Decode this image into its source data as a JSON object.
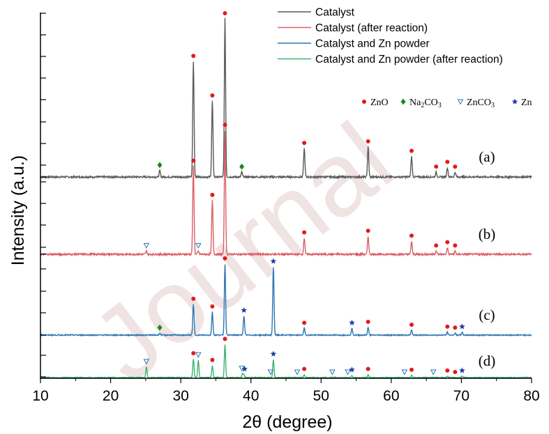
{
  "watermark": "Journal",
  "chart_data": {
    "type": "line",
    "xlabel": "2θ (degree)",
    "ylabel": "Intensity (a.u.)",
    "xlim": [
      10,
      80
    ],
    "xticks": [
      10,
      20,
      30,
      40,
      50,
      60,
      70,
      80
    ],
    "xtick_labels": [
      "10",
      "20",
      "30",
      "40",
      "50",
      "60",
      "70",
      "80"
    ],
    "legend": {
      "position": "top-right"
    },
    "colors": {
      "a": "#5a5a5a",
      "b": "#dc5e66",
      "c": "#2e75b6",
      "d": "#3cb371"
    },
    "series": [
      {
        "name": "Catalyst",
        "panel_label": "(a)",
        "color": "#5a5a5a",
        "baseline": 0,
        "peaks": [
          {
            "x": 27.0,
            "h": 4
          },
          {
            "x": 31.8,
            "h": 73
          },
          {
            "x": 34.5,
            "h": 48
          },
          {
            "x": 36.3,
            "h": 100
          },
          {
            "x": 38.7,
            "h": 3
          },
          {
            "x": 47.6,
            "h": 18
          },
          {
            "x": 56.7,
            "h": 19
          },
          {
            "x": 62.9,
            "h": 13
          },
          {
            "x": 66.4,
            "h": 3
          },
          {
            "x": 68.0,
            "h": 6
          },
          {
            "x": 69.1,
            "h": 3
          }
        ]
      },
      {
        "name": "Catalyst (after reaction)",
        "panel_label": "(b)",
        "color": "#dc5e66",
        "baseline": 0,
        "peaks": [
          {
            "x": 25.1,
            "h": 2
          },
          {
            "x": 31.8,
            "h": 54
          },
          {
            "x": 32.5,
            "h": 2
          },
          {
            "x": 34.5,
            "h": 33
          },
          {
            "x": 36.3,
            "h": 76
          },
          {
            "x": 47.6,
            "h": 10
          },
          {
            "x": 56.7,
            "h": 11
          },
          {
            "x": 62.9,
            "h": 8
          },
          {
            "x": 66.4,
            "h": 2
          },
          {
            "x": 68.0,
            "h": 4
          },
          {
            "x": 69.1,
            "h": 2
          }
        ]
      },
      {
        "name": "Catalyst and Zn powder",
        "panel_label": "(c)",
        "color": "#2e75b6",
        "baseline": 0,
        "peaks": [
          {
            "x": 27.0,
            "h": 2
          },
          {
            "x": 31.8,
            "h": 32
          },
          {
            "x": 34.5,
            "h": 24
          },
          {
            "x": 36.3,
            "h": 74
          },
          {
            "x": 39.0,
            "h": 20
          },
          {
            "x": 43.2,
            "h": 71
          },
          {
            "x": 47.6,
            "h": 7
          },
          {
            "x": 54.4,
            "h": 7
          },
          {
            "x": 56.7,
            "h": 8
          },
          {
            "x": 62.9,
            "h": 5
          },
          {
            "x": 68.0,
            "h": 3
          },
          {
            "x": 69.1,
            "h": 2
          },
          {
            "x": 70.1,
            "h": 3
          }
        ]
      },
      {
        "name": "Catalyst and Zn powder (after reaction)",
        "panel_label": "(d)",
        "color": "#3cb371",
        "baseline": 0,
        "peaks": [
          {
            "x": 25.1,
            "h": 14
          },
          {
            "x": 31.8,
            "h": 25
          },
          {
            "x": 32.5,
            "h": 23
          },
          {
            "x": 34.5,
            "h": 16
          },
          {
            "x": 36.3,
            "h": 44
          },
          {
            "x": 38.8,
            "h": 5
          },
          {
            "x": 39.0,
            "h": 4
          },
          {
            "x": 43.2,
            "h": 24
          },
          {
            "x": 47.6,
            "h": 4
          },
          {
            "x": 54.4,
            "h": 3
          },
          {
            "x": 56.7,
            "h": 4
          },
          {
            "x": 62.9,
            "h": 3
          },
          {
            "x": 68.0,
            "h": 2
          },
          {
            "x": 70.1,
            "h": 2
          }
        ]
      }
    ],
    "phase_legend": [
      {
        "symbol": "circle",
        "color": "#e31a1c",
        "label": "ZnO"
      },
      {
        "symbol": "diamond",
        "color": "#1a8a1a",
        "label": "Na2CO3"
      },
      {
        "symbol": "triangle-down-open",
        "color": "#2e75b6",
        "label": "ZnCO3"
      },
      {
        "symbol": "star",
        "color": "#1f3fa0",
        "label": "Zn"
      }
    ],
    "phase_markers": [
      {
        "series": 0,
        "phase": "ZnO",
        "x": [
          31.8,
          34.5,
          36.3,
          47.6,
          56.7,
          62.9,
          66.4,
          68.0,
          69.1
        ]
      },
      {
        "series": 0,
        "phase": "Na2CO3",
        "x": [
          27.0,
          38.7
        ]
      },
      {
        "series": 1,
        "phase": "ZnO",
        "x": [
          31.8,
          34.5,
          36.3,
          47.6,
          56.7,
          62.9,
          66.4,
          68.0,
          69.1
        ]
      },
      {
        "series": 1,
        "phase": "ZnCO3",
        "x": [
          25.1,
          32.5
        ]
      },
      {
        "series": 2,
        "phase": "ZnO",
        "x": [
          31.8,
          34.5,
          36.3,
          47.6,
          56.7,
          62.9,
          68.0,
          69.1
        ]
      },
      {
        "series": 2,
        "phase": "Na2CO3",
        "x": [
          27.0
        ]
      },
      {
        "series": 2,
        "phase": "Zn",
        "x": [
          39.0,
          43.2,
          54.4,
          70.1
        ]
      },
      {
        "series": 3,
        "phase": "ZnO",
        "x": [
          31.8,
          34.5,
          36.3,
          47.6,
          56.7,
          62.9,
          68.0,
          69.1
        ]
      },
      {
        "series": 3,
        "phase": "ZnCO3",
        "x": [
          25.1,
          32.5,
          38.7,
          42.8,
          46.6,
          51.6,
          53.8,
          61.9,
          66.0
        ]
      },
      {
        "series": 3,
        "phase": "Zn",
        "x": [
          39.1,
          43.2,
          54.4,
          70.1
        ]
      }
    ]
  }
}
